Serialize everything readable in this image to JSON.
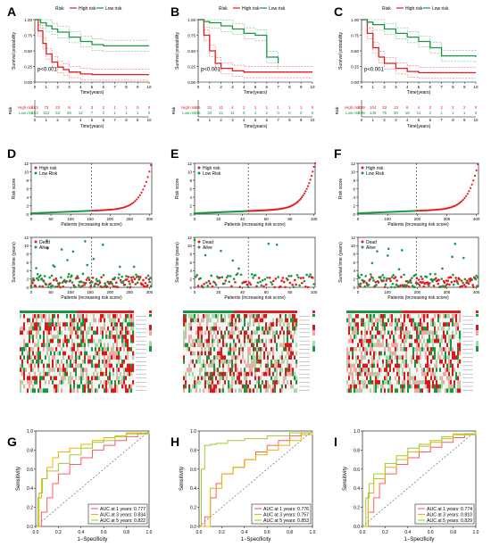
{
  "panels": {
    "km": [
      {
        "letter": "A",
        "pvalue": "p<0.001",
        "legend": {
          "title": "Risk",
          "high": "High risk",
          "low": "Low risk"
        },
        "xlabel": "Time(years)",
        "ylabel": "Survival probability",
        "yticks": [
          "0.00",
          "0.25",
          "0.50",
          "0.75",
          "1.00"
        ],
        "risk_table": {
          "title": "Risk",
          "high_label": "High risk",
          "low_label": "Low risk",
          "high": [
            "153",
            "73",
            "22",
            "9",
            "4",
            "3",
            "2",
            "1",
            "1",
            "0",
            "0"
          ],
          "low": [
            "153",
            "112",
            "54",
            "25",
            "12",
            "7",
            "2",
            "1",
            "1",
            "1",
            "0"
          ]
        }
      },
      {
        "letter": "B",
        "pvalue": "p<0.001",
        "legend": {
          "title": "Risk",
          "high": "High risk",
          "low": "Low risk"
        },
        "xlabel": "Time(years)",
        "ylabel": "Survival probability",
        "yticks": [
          "0.00",
          "0.25",
          "0.50",
          "0.75",
          "1.00"
        ],
        "risk_table": {
          "title": "Risk",
          "high_label": "High risk",
          "low_label": "Low risk",
          "high": [
            "56",
            "31",
            "11",
            "4",
            "2",
            "1",
            "1",
            "1",
            "1",
            "1",
            "0"
          ],
          "low": [
            "45",
            "34",
            "21",
            "11",
            "6",
            "4",
            "2",
            "0",
            "0",
            "0",
            "0"
          ]
        }
      },
      {
        "letter": "C",
        "pvalue": "p<0.001",
        "legend": {
          "title": "Risk",
          "high": "High risk",
          "low": "Low risk"
        },
        "xlabel": "Time(years)",
        "ylabel": "Survival probability",
        "yticks": [
          "0.00",
          "0.25",
          "0.50",
          "0.75",
          "1.00"
        ],
        "risk_table": {
          "title": "Risk",
          "high_label": "High risk",
          "low_label": "Low risk",
          "high": [
            "209",
            "104",
            "33",
            "13",
            "6",
            "4",
            "3",
            "2",
            "2",
            "2",
            "0"
          ],
          "low": [
            "198",
            "146",
            "75",
            "36",
            "18",
            "11",
            "4",
            "1",
            "1",
            "1",
            "0"
          ]
        }
      }
    ],
    "score": [
      {
        "letter": "D",
        "ylabel": "Risk score",
        "xlabel": "Patients (increasing risk score)",
        "legend": [
          "High risk",
          "Low Risk"
        ],
        "xticks": [
          "0",
          "50",
          "100",
          "150",
          "200",
          "250",
          "300"
        ],
        "yticks": [
          "0",
          "2",
          "4",
          "6",
          "8",
          "10",
          "12"
        ]
      },
      {
        "letter": "E",
        "ylabel": "Risk score",
        "xlabel": "Patients (increasing risk score)",
        "legend": [
          "High risk",
          "Low Risk"
        ],
        "xticks": [
          "0",
          "20",
          "40",
          "60",
          "80",
          "100"
        ],
        "yticks": [
          "0",
          "2",
          "4",
          "6",
          "8",
          "10",
          "12"
        ]
      },
      {
        "letter": "F",
        "ylabel": "Risk score",
        "xlabel": "Patients (increasing risk score)",
        "legend": [
          "High risk",
          "Low Risk"
        ],
        "xticks": [
          "0",
          "100",
          "200",
          "300",
          "400"
        ],
        "yticks": [
          "0",
          "2",
          "4",
          "6",
          "8",
          "10",
          "12"
        ]
      }
    ],
    "status": [
      {
        "ylabel": "Survival time (years)",
        "xlabel": "Patients (increasing risk score)",
        "legend": [
          "Dead",
          "Alive"
        ],
        "xticks": [
          "0",
          "50",
          "100",
          "150",
          "200",
          "250",
          "300"
        ],
        "yticks": [
          "0",
          "2",
          "4",
          "6",
          "8",
          "10",
          "12"
        ]
      },
      {
        "ylabel": "Survival time (years)",
        "xlabel": "Patients (increasing risk score)",
        "legend": [
          "Dead",
          "Alive"
        ],
        "xticks": [
          "0",
          "20",
          "40",
          "60",
          "80",
          "100"
        ],
        "yticks": [
          "0",
          "2",
          "4",
          "6",
          "8",
          "10",
          "12"
        ]
      },
      {
        "ylabel": "Survival time (years)",
        "xlabel": "Patients (increasing risk score)",
        "legend": [
          "Dead",
          "Alive"
        ],
        "xticks": [
          "0",
          "100",
          "200",
          "300",
          "400"
        ],
        "yticks": [
          "0",
          "2",
          "4",
          "6",
          "8",
          "10",
          "12"
        ]
      }
    ],
    "roc": [
      {
        "letter": "G",
        "xlabel": "1−Specificity",
        "ylabel": "Sensitivity",
        "legend": [
          "AUC at 1 years: 0.777",
          "AUC at 3 years: 0.834",
          "AUC at 5 years: 0.822"
        ]
      },
      {
        "letter": "H",
        "xlabel": "1−Specificity",
        "ylabel": "Sensitivity",
        "legend": [
          "AUC at 1 years: 0.776",
          "AUC at 3 years: 0.757",
          "AUC at 5 years: 0.853"
        ]
      },
      {
        "letter": "I",
        "xlabel": "1−Specificity",
        "ylabel": "Sensitivity",
        "legend": [
          "AUC at 1 years: 0.774",
          "AUC at 3 years: 0.810",
          "AUC at 5 years: 0.829"
        ]
      }
    ]
  },
  "colors": {
    "high": "#e41a1c",
    "low": "#1a9641",
    "auc1": "#ff5a5f",
    "auc3": "#e8b400",
    "auc5": "#9acd32",
    "heat_high": "#d7191c",
    "heat_mid": "#ffffff",
    "heat_low": "#1a9641"
  },
  "chart_data": [
    {
      "type": "line",
      "panel": "A",
      "xlabel": "Time(years)",
      "ylabel": "Survival probability",
      "xlim": [
        0,
        10
      ],
      "ylim": [
        0,
        1
      ],
      "annotation": "p<0.001",
      "series": [
        {
          "name": "High risk",
          "x": [
            0,
            0.3,
            0.7,
            1,
            1.5,
            2,
            2.5,
            3,
            4,
            5,
            10
          ],
          "values": [
            1,
            0.82,
            0.62,
            0.45,
            0.32,
            0.24,
            0.2,
            0.16,
            0.13,
            0.12,
            0.12
          ]
        },
        {
          "name": "Low risk",
          "x": [
            0,
            0.5,
            1,
            1.5,
            2,
            3,
            4,
            5,
            6,
            10
          ],
          "values": [
            1,
            0.95,
            0.9,
            0.85,
            0.8,
            0.72,
            0.65,
            0.6,
            0.58,
            0.58
          ]
        }
      ]
    },
    {
      "type": "line",
      "panel": "B",
      "xlabel": "Time(years)",
      "ylabel": "Survival probability",
      "xlim": [
        0,
        10
      ],
      "ylim": [
        0,
        1
      ],
      "annotation": "p<0.001",
      "series": [
        {
          "name": "High risk",
          "x": [
            0,
            0.5,
            1,
            1.5,
            2,
            3,
            4,
            5,
            10
          ],
          "values": [
            1,
            0.75,
            0.5,
            0.3,
            0.22,
            0.18,
            0.16,
            0.16,
            0.16
          ]
        },
        {
          "name": "Low risk",
          "x": [
            0,
            0.5,
            1,
            2,
            3,
            4,
            5,
            6,
            7
          ],
          "values": [
            1,
            0.97,
            0.95,
            0.9,
            0.85,
            0.78,
            0.75,
            0.4,
            0.3
          ]
        }
      ]
    },
    {
      "type": "line",
      "panel": "C",
      "xlabel": "Time(years)",
      "ylabel": "Survival probability",
      "xlim": [
        0,
        10
      ],
      "ylim": [
        0,
        1
      ],
      "annotation": "p<0.001",
      "series": [
        {
          "name": "High risk",
          "x": [
            0,
            0.5,
            1,
            1.5,
            2,
            3,
            4,
            5,
            10
          ],
          "values": [
            1,
            0.78,
            0.55,
            0.4,
            0.3,
            0.22,
            0.17,
            0.15,
            0.15
          ]
        },
        {
          "name": "Low risk",
          "x": [
            0,
            0.5,
            1,
            2,
            3,
            4,
            5,
            6,
            7,
            10
          ],
          "values": [
            1,
            0.96,
            0.92,
            0.85,
            0.78,
            0.72,
            0.65,
            0.55,
            0.42,
            0.4
          ]
        }
      ]
    },
    {
      "type": "scatter",
      "panel": "D",
      "xlabel": "Patients (increasing risk score)",
      "ylabel": "Risk score",
      "xlim": [
        0,
        306
      ],
      "ylim": [
        0,
        12
      ],
      "cutoff_index": 153,
      "n": 306,
      "series": [
        {
          "name": "Low Risk",
          "x": [
            0,
            50,
            100,
            150
          ],
          "values": [
            0.2,
            0.6,
            0.9,
            1.1
          ]
        },
        {
          "name": "High risk",
          "x": [
            160,
            200,
            250,
            280,
            300,
            306
          ],
          "values": [
            1.2,
            1.7,
            2.6,
            4.0,
            8.0,
            12.0
          ]
        }
      ]
    },
    {
      "type": "scatter",
      "panel": "E",
      "xlabel": "Patients (increasing risk score)",
      "ylabel": "Risk score",
      "xlim": [
        0,
        101
      ],
      "ylim": [
        0,
        12
      ],
      "cutoff_index": 45,
      "n": 101,
      "series": [
        {
          "name": "Low Risk",
          "x": [
            0,
            20,
            40
          ],
          "values": [
            0.2,
            0.7,
            1.0
          ]
        },
        {
          "name": "High risk",
          "x": [
            50,
            70,
            90,
            98,
            101
          ],
          "values": [
            1.3,
            2.0,
            3.5,
            7.0,
            11.0
          ]
        }
      ]
    },
    {
      "type": "scatter",
      "panel": "F",
      "xlabel": "Patients (increasing risk score)",
      "ylabel": "Risk score",
      "xlim": [
        0,
        407
      ],
      "ylim": [
        0,
        12
      ],
      "cutoff_index": 198,
      "n": 407,
      "series": [
        {
          "name": "Low Risk",
          "x": [
            0,
            100,
            198
          ],
          "values": [
            0.2,
            0.8,
            1.1
          ]
        },
        {
          "name": "High risk",
          "x": [
            250,
            320,
            380,
            400,
            407
          ],
          "values": [
            1.6,
            2.5,
            4.5,
            8.0,
            12.0
          ]
        }
      ]
    },
    {
      "type": "line",
      "panel": "G",
      "xlabel": "1−Specificity",
      "ylabel": "Sensitivity",
      "xlim": [
        0,
        1
      ],
      "ylim": [
        0,
        1
      ],
      "series": [
        {
          "name": "AUC at 1 years: 0.777",
          "x": [
            0,
            0.05,
            0.1,
            0.15,
            0.2,
            0.3,
            0.4,
            0.5,
            0.6,
            0.7,
            0.8,
            0.9,
            1
          ],
          "values": [
            0,
            0.15,
            0.3,
            0.45,
            0.55,
            0.65,
            0.72,
            0.8,
            0.85,
            0.9,
            0.94,
            0.97,
            1
          ]
        },
        {
          "name": "AUC at 3 years: 0.834",
          "x": [
            0,
            0.02,
            0.05,
            0.1,
            0.15,
            0.2,
            0.3,
            0.4,
            0.5,
            0.6,
            0.7,
            0.8,
            1
          ],
          "values": [
            0,
            0.3,
            0.5,
            0.62,
            0.72,
            0.78,
            0.82,
            0.86,
            0.9,
            0.93,
            0.95,
            0.98,
            1
          ]
        },
        {
          "name": "AUC at 5 years: 0.822",
          "x": [
            0,
            0.03,
            0.06,
            0.1,
            0.2,
            0.3,
            0.4,
            0.5,
            0.6,
            0.7,
            0.8,
            1
          ],
          "values": [
            0,
            0.35,
            0.5,
            0.58,
            0.66,
            0.75,
            0.82,
            0.88,
            0.9,
            0.94,
            0.97,
            1
          ]
        }
      ]
    },
    {
      "type": "line",
      "panel": "H",
      "xlabel": "1−Specificity",
      "ylabel": "Sensitivity",
      "xlim": [
        0,
        1
      ],
      "ylim": [
        0,
        1
      ],
      "series": [
        {
          "name": "AUC at 1 years: 0.776",
          "x": [
            0,
            0.05,
            0.1,
            0.15,
            0.2,
            0.3,
            0.4,
            0.5,
            0.6,
            0.7,
            0.8,
            0.9,
            1
          ],
          "values": [
            0,
            0.1,
            0.3,
            0.45,
            0.55,
            0.62,
            0.7,
            0.78,
            0.85,
            0.9,
            0.95,
            0.98,
            1
          ]
        },
        {
          "name": "AUC at 3 years: 0.757",
          "x": [
            0,
            0.1,
            0.2,
            0.3,
            0.4,
            0.5,
            0.6,
            0.7,
            0.8,
            0.9,
            1
          ],
          "values": [
            0,
            0.4,
            0.55,
            0.62,
            0.7,
            0.75,
            0.8,
            0.85,
            0.9,
            0.96,
            1
          ]
        },
        {
          "name": "AUC at 5 years: 0.853",
          "x": [
            0,
            0.02,
            0.05,
            0.1,
            0.15,
            0.25,
            0.4,
            0.6,
            0.8,
            1
          ],
          "values": [
            0,
            0.6,
            0.85,
            0.86,
            0.87,
            0.9,
            0.92,
            0.95,
            0.98,
            1
          ]
        }
      ]
    },
    {
      "type": "line",
      "panel": "I",
      "xlabel": "1−Specificity",
      "ylabel": "Sensitivity",
      "xlim": [
        0,
        1
      ],
      "ylim": [
        0,
        1
      ],
      "series": [
        {
          "name": "AUC at 1 years: 0.774",
          "x": [
            0,
            0.05,
            0.1,
            0.15,
            0.2,
            0.3,
            0.4,
            0.5,
            0.6,
            0.7,
            0.8,
            0.9,
            1
          ],
          "values": [
            0,
            0.15,
            0.3,
            0.45,
            0.55,
            0.65,
            0.72,
            0.78,
            0.83,
            0.88,
            0.93,
            0.97,
            1
          ]
        },
        {
          "name": "AUC at 3 years: 0.810",
          "x": [
            0,
            0.05,
            0.1,
            0.2,
            0.3,
            0.4,
            0.5,
            0.6,
            0.7,
            0.8,
            1
          ],
          "values": [
            0,
            0.35,
            0.5,
            0.62,
            0.7,
            0.78,
            0.84,
            0.88,
            0.92,
            0.96,
            1
          ]
        },
        {
          "name": "AUC at 5 years: 0.829",
          "x": [
            0,
            0.03,
            0.06,
            0.1,
            0.2,
            0.3,
            0.4,
            0.5,
            0.6,
            0.7,
            0.8,
            1
          ],
          "values": [
            0,
            0.3,
            0.45,
            0.55,
            0.66,
            0.74,
            0.82,
            0.86,
            0.9,
            0.94,
            0.97,
            1
          ]
        }
      ]
    }
  ]
}
